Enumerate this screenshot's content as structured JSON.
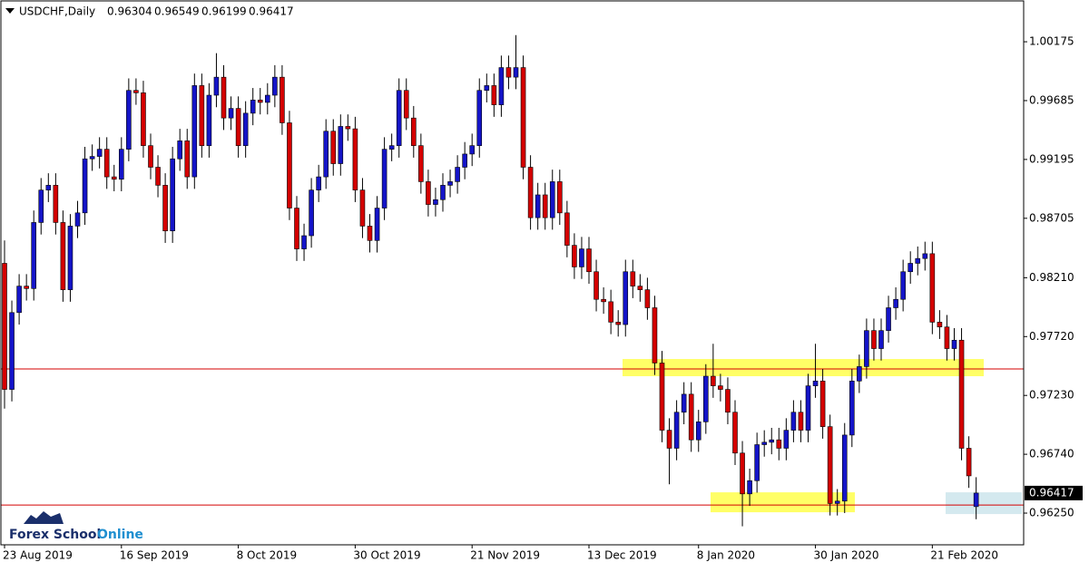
{
  "chart_data": {
    "type": "candlestick",
    "title": "USDCHF,Daily",
    "logo": [
      "Forex School",
      "Online"
    ],
    "categories": [
      "23 Aug 2019",
      null,
      null,
      null,
      null,
      null,
      null,
      null,
      null,
      null,
      null,
      null,
      null,
      null,
      null,
      null,
      "16 Sep 2019",
      null,
      null,
      null,
      null,
      null,
      null,
      null,
      null,
      null,
      null,
      null,
      null,
      null,
      null,
      null,
      "8 Oct 2019",
      null,
      null,
      null,
      null,
      null,
      null,
      null,
      null,
      null,
      null,
      null,
      null,
      null,
      null,
      null,
      "30 Oct 2019",
      null,
      null,
      null,
      null,
      null,
      null,
      null,
      null,
      null,
      null,
      null,
      null,
      null,
      null,
      null,
      "21 Nov 2019",
      null,
      null,
      null,
      null,
      null,
      null,
      null,
      null,
      null,
      null,
      null,
      null,
      null,
      null,
      null,
      "13 Dec 2019",
      null,
      null,
      null,
      null,
      null,
      null,
      null,
      null,
      null,
      null,
      null,
      null,
      null,
      null,
      "8 Jan 2020",
      null,
      null,
      null,
      null,
      null,
      null,
      null,
      null,
      null,
      null,
      null,
      null,
      null,
      null,
      null,
      "30 Jan 2020",
      null,
      null,
      null,
      null,
      null,
      null,
      null,
      null,
      null,
      null,
      null,
      null,
      null,
      null,
      null,
      "21 Feb 2020",
      null,
      null,
      null,
      null,
      null,
      null
    ],
    "open": [
      0.9833,
      0.9728,
      0.9792,
      0.9814,
      0.9812,
      0.9867,
      0.9894,
      0.9898,
      0.9867,
      0.9811,
      0.9864,
      0.9875,
      0.992,
      0.9922,
      0.9928,
      0.9905,
      0.9903,
      0.9928,
      0.9977,
      0.9975,
      0.9931,
      0.9913,
      0.9898,
      0.986,
      0.992,
      0.9935,
      0.9905,
      0.9981,
      0.9931,
      0.9973,
      0.9988,
      0.9954,
      0.9962,
      0.9931,
      0.9958,
      0.9969,
      0.9967,
      0.9973,
      0.9988,
      0.995,
      0.9879,
      0.9845,
      0.9856,
      0.9894,
      0.9905,
      0.9943,
      0.9916,
      0.9947,
      0.9945,
      0.9894,
      0.9864,
      0.9852,
      0.9879,
      0.9928,
      0.9931,
      0.9977,
      0.9954,
      0.9931,
      0.9901,
      0.9882,
      0.9886,
      0.9898,
      0.9901,
      0.9913,
      0.9924,
      0.9931,
      0.9977,
      0.9981,
      0.9965,
      0.9996,
      0.9988,
      0.9996,
      0.9913,
      0.9871,
      0.989,
      0.9871,
      0.9901,
      0.9875,
      0.9848,
      0.983,
      0.9845,
      0.9826,
      0.9803,
      0.9801,
      0.9784,
      0.9782,
      0.9826,
      0.9814,
      0.9811,
      0.9796,
      0.975,
      0.9694,
      0.9679,
      0.9709,
      0.9724,
      0.9686,
      0.9701,
      0.9739,
      0.9731,
      0.9728,
      0.9709,
      0.9675,
      0.9641,
      0.9652,
      0.9682,
      0.9684,
      0.9686,
      0.9679,
      0.9694,
      0.9709,
      0.9694,
      0.9731,
      0.9735,
      0.9697,
      0.9633,
      0.9635,
      0.969,
      0.9735,
      0.9747,
      0.9777,
      0.9762,
      0.9777,
      0.9796,
      0.9803,
      0.9826,
      0.9833,
      0.9837,
      0.9841,
      0.9784,
      0.978,
      0.9762,
      0.9769,
      0.9679,
      0.96304
    ],
    "high": [
      0.9852,
      0.9802,
      0.9824,
      0.9824,
      0.9877,
      0.9904,
      0.9908,
      0.9908,
      0.9877,
      0.9874,
      0.9885,
      0.993,
      0.9932,
      0.9938,
      0.9938,
      0.9915,
      0.9938,
      0.9987,
      0.9987,
      0.9985,
      0.9941,
      0.9923,
      0.9908,
      0.993,
      0.9945,
      0.9945,
      0.9991,
      0.9991,
      0.9983,
      1.0008,
      0.9998,
      0.9972,
      0.9972,
      0.9968,
      0.9979,
      0.9979,
      0.9983,
      0.9998,
      0.9998,
      0.996,
      0.9889,
      0.9866,
      0.9904,
      0.9915,
      0.9953,
      0.9953,
      0.9957,
      0.9957,
      0.9955,
      0.9904,
      0.9874,
      0.9889,
      0.9938,
      0.9941,
      0.9987,
      0.9987,
      0.9964,
      0.9941,
      0.9911,
      0.9896,
      0.9908,
      0.9911,
      0.9923,
      0.9934,
      0.9941,
      0.9987,
      0.9991,
      0.9991,
      1.0006,
      1.0006,
      1.0023,
      1.0006,
      0.9923,
      0.99,
      0.99,
      0.9911,
      0.9911,
      0.9885,
      0.9858,
      0.9855,
      0.9855,
      0.9836,
      0.9813,
      0.9811,
      0.9794,
      0.9836,
      0.9836,
      0.9824,
      0.9821,
      0.9806,
      0.976,
      0.9704,
      0.9719,
      0.9734,
      0.9734,
      0.9711,
      0.9749,
      0.9766,
      0.9741,
      0.9738,
      0.9719,
      0.9685,
      0.9662,
      0.9692,
      0.9694,
      0.9696,
      0.9696,
      0.9704,
      0.9719,
      0.9719,
      0.9741,
      0.9766,
      0.9745,
      0.9707,
      0.9645,
      0.97,
      0.9745,
      0.9757,
      0.9787,
      0.9787,
      0.9787,
      0.9806,
      0.9813,
      0.9836,
      0.9843,
      0.9847,
      0.9851,
      0.9851,
      0.9794,
      0.979,
      0.9779,
      0.9779,
      0.9689,
      0.96549
    ],
    "low": [
      0.9712,
      0.9718,
      0.9782,
      0.9802,
      0.9802,
      0.9857,
      0.9884,
      0.9857,
      0.9801,
      0.9801,
      0.9854,
      0.9865,
      0.991,
      0.9912,
      0.9895,
      0.9893,
      0.9893,
      0.9918,
      0.9965,
      0.9921,
      0.9903,
      0.9888,
      0.985,
      0.985,
      0.991,
      0.9895,
      0.9895,
      0.9921,
      0.9921,
      0.9963,
      0.9944,
      0.9944,
      0.9921,
      0.9921,
      0.9948,
      0.9957,
      0.9957,
      0.9963,
      0.994,
      0.9869,
      0.9835,
      0.9835,
      0.9846,
      0.9884,
      0.9895,
      0.9906,
      0.9906,
      0.9935,
      0.9884,
      0.9854,
      0.9842,
      0.9842,
      0.9869,
      0.9918,
      0.9921,
      0.9944,
      0.9921,
      0.9891,
      0.9872,
      0.9872,
      0.9876,
      0.9888,
      0.9891,
      0.9903,
      0.9914,
      0.9921,
      0.9967,
      0.9955,
      0.9955,
      0.9978,
      0.9978,
      0.9903,
      0.9861,
      0.9861,
      0.9861,
      0.9861,
      0.9865,
      0.9838,
      0.982,
      0.982,
      0.9816,
      0.9793,
      0.9791,
      0.9774,
      0.9772,
      0.9772,
      0.9804,
      0.9801,
      0.9786,
      0.974,
      0.9684,
      0.9649,
      0.9669,
      0.9699,
      0.9676,
      0.9676,
      0.9691,
      0.9721,
      0.9718,
      0.9699,
      0.9665,
      0.9614,
      0.9631,
      0.9642,
      0.9672,
      0.9674,
      0.9669,
      0.9669,
      0.9684,
      0.9684,
      0.9684,
      0.9721,
      0.9687,
      0.9623,
      0.9623,
      0.9625,
      0.968,
      0.9725,
      0.9737,
      0.9752,
      0.9752,
      0.9767,
      0.9786,
      0.9793,
      0.9816,
      0.9823,
      0.9827,
      0.9774,
      0.977,
      0.9752,
      0.9752,
      0.9669,
      0.9646,
      0.96199
    ],
    "close": [
      0.9728,
      0.9792,
      0.9814,
      0.9812,
      0.9867,
      0.9894,
      0.9898,
      0.9867,
      0.9811,
      0.9864,
      0.9875,
      0.992,
      0.9922,
      0.9928,
      0.9905,
      0.9903,
      0.9928,
      0.9977,
      0.9975,
      0.9931,
      0.9913,
      0.9898,
      0.986,
      0.992,
      0.9935,
      0.9905,
      0.9981,
      0.9931,
      0.9973,
      0.9988,
      0.9954,
      0.9962,
      0.9931,
      0.9958,
      0.9969,
      0.9967,
      0.9973,
      0.9988,
      0.995,
      0.9879,
      0.9845,
      0.9856,
      0.9894,
      0.9905,
      0.9943,
      0.9916,
      0.9947,
      0.9945,
      0.9894,
      0.9864,
      0.9852,
      0.9879,
      0.9928,
      0.9931,
      0.9977,
      0.9954,
      0.9931,
      0.9901,
      0.9882,
      0.9886,
      0.9898,
      0.9901,
      0.9913,
      0.9924,
      0.9931,
      0.9977,
      0.9981,
      0.9965,
      0.9996,
      0.9988,
      0.9996,
      0.9913,
      0.9871,
      0.989,
      0.9871,
      0.9901,
      0.9875,
      0.9848,
      0.983,
      0.9845,
      0.9826,
      0.9803,
      0.9801,
      0.9784,
      0.9782,
      0.9826,
      0.9814,
      0.9811,
      0.9796,
      0.975,
      0.9694,
      0.9679,
      0.9709,
      0.9724,
      0.9686,
      0.9701,
      0.9739,
      0.9731,
      0.9728,
      0.9709,
      0.9675,
      0.9641,
      0.9652,
      0.9682,
      0.9684,
      0.9686,
      0.9679,
      0.9694,
      0.9709,
      0.9694,
      0.9731,
      0.9735,
      0.9697,
      0.9633,
      0.9635,
      0.969,
      0.9735,
      0.9747,
      0.9777,
      0.9762,
      0.9777,
      0.9796,
      0.9803,
      0.9826,
      0.9833,
      0.9837,
      0.9841,
      0.9784,
      0.978,
      0.9762,
      0.9769,
      0.9679,
      0.9656,
      0.96417
    ],
    "up_color": "#1414c8",
    "down_color": "#d40000",
    "ylim": [
      0.95986,
      1.00485
    ],
    "yticks": [
      1.00175,
      0.99685,
      0.99195,
      0.98705,
      {
        "value": 0.9821,
        "label": "0.98210"
      },
      {
        "value": 0.9772,
        "label": "0.97720"
      },
      {
        "value": 0.9723,
        "label": "0.97230"
      },
      {
        "value": 0.9674,
        "label": "0.96740"
      },
      {
        "value": 0.9625,
        "label": "0.96250"
      }
    ],
    "levels": [
      {
        "value": 0.9745,
        "color": "#d40000"
      },
      {
        "value": 0.96317,
        "color": "#d40000"
      }
    ],
    "zones": [
      {
        "low": 0.9739,
        "high": 0.97533,
        "color": "#ffff66"
      },
      {
        "low": 0.96257,
        "high": 0.96423,
        "color": "#ffff66"
      },
      {
        "low": 0.96242,
        "high": 0.96423,
        "color": "#d4e9ef"
      }
    ]
  }
}
